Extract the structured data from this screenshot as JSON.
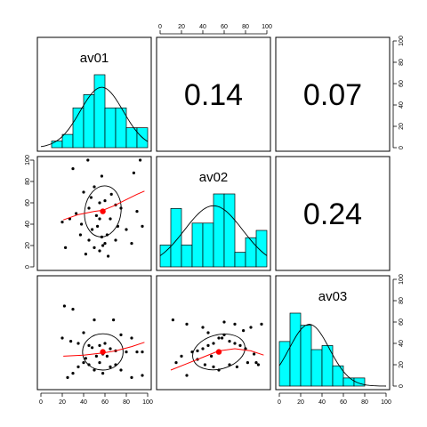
{
  "chart_data": {
    "type": "scatter",
    "variables": [
      "av01",
      "av02",
      "av03"
    ],
    "axis_ticks": [
      "0",
      "20",
      "40",
      "60",
      "80",
      "100"
    ],
    "xlim": [
      0,
      100
    ],
    "ylim": [
      0,
      100
    ],
    "correlations": {
      "av01_av02": "0.14",
      "av01_av03": "0.07",
      "av02_av03": "0.24"
    },
    "colors": {
      "histogram_fill": "#00ffff",
      "loess": "#ff0000",
      "center_point": "#ff0000",
      "points": "#000000"
    },
    "histograms": {
      "av01": {
        "bins": [
          10,
          20,
          30,
          40,
          50,
          60,
          70,
          80,
          90,
          100
        ],
        "counts": [
          1,
          2,
          6,
          8,
          11,
          6,
          6,
          3,
          3
        ]
      },
      "av02": {
        "bins": [
          0,
          10,
          20,
          30,
          40,
          50,
          60,
          70,
          80,
          90,
          100
        ],
        "counts": [
          3,
          8,
          3,
          6,
          6,
          10,
          10,
          2,
          4,
          5
        ]
      },
      "av03": {
        "bins": [
          0,
          10,
          20,
          30,
          40,
          50,
          60,
          70,
          80
        ],
        "counts": [
          11,
          18,
          15,
          9,
          10,
          5,
          2,
          2
        ]
      }
    },
    "scatter": {
      "av01_av02": {
        "x": [
          30,
          44,
          57,
          50,
          87,
          93,
          60,
          47,
          55,
          70,
          45,
          33,
          75,
          90,
          20,
          27,
          52,
          65,
          38,
          53,
          48,
          62,
          72,
          80,
          57,
          45,
          60,
          58,
          55,
          42,
          70,
          50,
          85,
          63,
          37,
          95,
          23,
          66,
          40,
          55
        ],
        "y": [
          92,
          100,
          85,
          75,
          88,
          100,
          62,
          65,
          60,
          58,
          55,
          50,
          55,
          52,
          42,
          45,
          48,
          45,
          40,
          38,
          35,
          30,
          38,
          35,
          28,
          25,
          22,
          20,
          15,
          12,
          25,
          18,
          22,
          10,
          30,
          38,
          18,
          68,
          70,
          45
        ],
        "center": [
          58,
          52
        ],
        "loess": [
          [
            21,
            44
          ],
          [
            35,
            49
          ],
          [
            50,
            52
          ],
          [
            58,
            53
          ],
          [
            68,
            57
          ],
          [
            78,
            62
          ],
          [
            90,
            68
          ],
          [
            97,
            71
          ]
        ],
        "ellipse": {
          "rx": 17,
          "ry": 24,
          "rotation_deg": 8
        }
      },
      "av01_av03": {
        "x": [
          22,
          30,
          50,
          68,
          20,
          28,
          75,
          85,
          40,
          35,
          60,
          55,
          45,
          48,
          65,
          70,
          80,
          58,
          62,
          52,
          42,
          40,
          55,
          95,
          90,
          45,
          35,
          65,
          70,
          30,
          25,
          50,
          58,
          75,
          85,
          95
        ],
        "y": [
          75,
          72,
          62,
          62,
          45,
          42,
          48,
          45,
          50,
          40,
          40,
          38,
          38,
          36,
          35,
          33,
          32,
          30,
          28,
          28,
          26,
          22,
          22,
          32,
          32,
          20,
          18,
          18,
          20,
          12,
          8,
          15,
          12,
          15,
          8,
          10
        ],
        "center": [
          58,
          32
        ],
        "loess": [
          [
            21,
            28
          ],
          [
            40,
            29
          ],
          [
            58,
            31
          ],
          [
            70,
            33
          ],
          [
            85,
            37
          ],
          [
            97,
            41
          ]
        ],
        "ellipse": {
          "rx": 19,
          "ry": 17,
          "rotation_deg": 0
        }
      },
      "av02_av03": {
        "x": [
          12,
          25,
          40,
          45,
          60,
          70,
          78,
          85,
          95,
          60,
          58,
          55,
          50,
          45,
          40,
          35,
          30,
          65,
          70,
          75,
          80,
          88,
          90,
          20,
          15,
          35,
          42,
          50,
          55,
          65,
          72,
          82,
          92,
          25,
          48
        ],
        "y": [
          62,
          58,
          55,
          50,
          60,
          58,
          52,
          55,
          58,
          48,
          45,
          45,
          40,
          38,
          35,
          33,
          32,
          42,
          40,
          38,
          35,
          30,
          22,
          28,
          22,
          25,
          20,
          18,
          15,
          20,
          18,
          22,
          20,
          10,
          28
        ],
        "center": [
          55,
          32
        ],
        "loess": [
          [
            10,
            15
          ],
          [
            25,
            21
          ],
          [
            40,
            27
          ],
          [
            55,
            33
          ],
          [
            70,
            35
          ],
          [
            85,
            33
          ],
          [
            97,
            29
          ]
        ],
        "ellipse": {
          "rx": 25,
          "ry": 16,
          "rotation_deg": -15
        }
      }
    }
  }
}
